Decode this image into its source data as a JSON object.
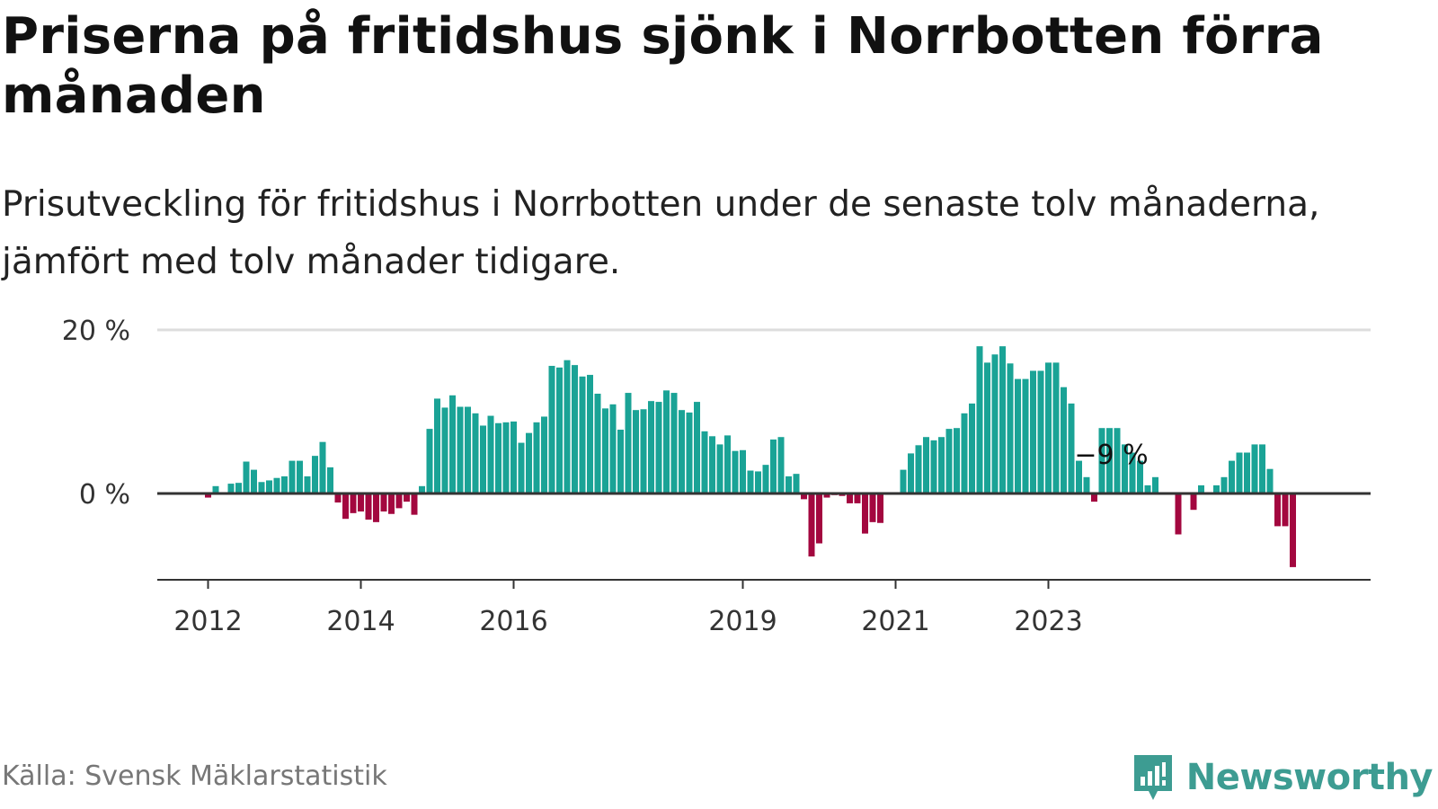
{
  "title": "Priserna på fritidshus sjönk i Norrbotten förra månaden",
  "subtitle": "Prisutveckling för fritidshus i Norrbotten under de senaste tolv månaderna, jämfört med tolv månader tidigare.",
  "source": "Källa: Svensk Mäklarstatistik",
  "brand": {
    "name": "Newsworthy",
    "icon": "newsworthy-logo-icon"
  },
  "colors": {
    "positive": "#1aa396",
    "negative": "#a3073f",
    "zero_line": "#333333",
    "grid": "#dddddd"
  },
  "chart_data": {
    "type": "bar",
    "title": "",
    "xlabel": "",
    "ylabel": "",
    "unit": "%",
    "ylim": [
      -10.5,
      20
    ],
    "y_ticks": [
      {
        "value": 0,
        "label": "0 %"
      },
      {
        "value": 20,
        "label": "20 %"
      }
    ],
    "x_ticks": [
      {
        "index": 0,
        "label": "2012"
      },
      {
        "index": 20,
        "label": "2014"
      },
      {
        "index": 40,
        "label": "2016"
      },
      {
        "index": 70,
        "label": "2019"
      },
      {
        "index": 90,
        "label": "2021"
      },
      {
        "index": 110,
        "label": "2023"
      }
    ],
    "start_offset": -1,
    "annotation": {
      "index": 118,
      "label": "−9 %"
    },
    "values": [
      -0.5,
      0.9,
      0.0,
      1.2,
      1.3,
      3.9,
      2.9,
      1.4,
      1.6,
      1.9,
      2.1,
      4.0,
      4.0,
      2.1,
      4.6,
      6.3,
      3.2,
      -1.1,
      -3.1,
      -2.4,
      -2.2,
      -3.2,
      -3.5,
      -2.2,
      -2.5,
      -1.8,
      -1.0,
      -2.6,
      0.9,
      7.9,
      11.6,
      10.5,
      12.0,
      10.6,
      10.6,
      9.8,
      8.3,
      9.5,
      8.6,
      8.7,
      8.8,
      6.2,
      7.4,
      8.7,
      9.4,
      15.6,
      15.4,
      16.3,
      15.7,
      14.3,
      14.5,
      12.2,
      10.4,
      10.9,
      7.8,
      12.3,
      10.2,
      10.3,
      11.3,
      11.2,
      12.6,
      12.3,
      10.2,
      9.9,
      11.2,
      7.6,
      7.0,
      6.0,
      7.1,
      5.2,
      5.3,
      2.8,
      2.7,
      3.5,
      6.6,
      6.9,
      2.1,
      2.4,
      -0.7,
      -7.7,
      -6.1,
      -0.5,
      -0.2,
      -0.3,
      -1.2,
      -1.2,
      -4.9,
      -3.5,
      -3.6,
      0.0,
      0.0,
      2.9,
      4.9,
      5.9,
      6.9,
      6.5,
      6.9,
      7.9,
      8.0,
      9.8,
      11.0,
      18.0,
      16.0,
      17.0,
      18.0,
      15.9,
      14.0,
      14.0,
      15.0,
      15.0,
      16.0,
      16.0,
      13.0,
      11.0,
      4.0,
      2.0,
      -1.0,
      8.0,
      8.0,
      8.0,
      6.0,
      5.0,
      4.0,
      1.0,
      2.0,
      0.0,
      0.0,
      -5.0,
      0.0,
      -2.0,
      1.0,
      0.0,
      1.0,
      2.0,
      4.0,
      5.0,
      5.0,
      6.0,
      6.0,
      3.0,
      -4.0,
      -4.0,
      -9.0
    ]
  }
}
